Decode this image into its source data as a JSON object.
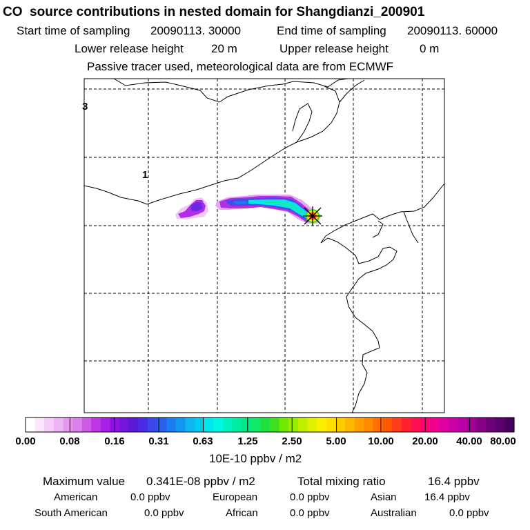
{
  "header": {
    "title": "CO  source contributions in nested domain for Shangdianzi_200901",
    "start_label": "Start time of sampling",
    "start_value": "20090113. 30000",
    "end_label": "End time of sampling",
    "end_value": "20090113. 60000",
    "lower_label": "Lower release height",
    "lower_value": "20 m",
    "upper_label": "Upper release height",
    "upper_value": "0 m",
    "note": "Passive tracer used, meteorological data are from ECMWF"
  },
  "map": {
    "contour_labels": [
      "3",
      "1"
    ]
  },
  "colorbar": {
    "tick_labels": [
      "0.00",
      "0.08",
      "0.16",
      "0.31",
      "0.63",
      "1.25",
      "2.50",
      "5.00",
      "10.00",
      "20.00",
      "40.00",
      "80.00"
    ],
    "units": "10E-10 ppbv / m2",
    "colors": [
      "#ffffff",
      "#fbe6fb",
      "#f5cdf7",
      "#eeb4f3",
      "#e69aef",
      "#de80eb",
      "#cf5ae8",
      "#c036e6",
      "#a820e6",
      "#8f12e0",
      "#7414dc",
      "#5a1ad8",
      "#4a2ae4",
      "#3c44ea",
      "#2a60ee",
      "#1a7ef0",
      "#1098f0",
      "#10b4f0",
      "#00ccf0",
      "#00e8ee",
      "#00f6e0",
      "#00f2c0",
      "#00eea4",
      "#00e888",
      "#10e868",
      "#20e040",
      "#40e020",
      "#70e800",
      "#98ee00",
      "#c0f000",
      "#e0f000",
      "#f8f000",
      "#ffe000",
      "#ffcc00",
      "#ffb800",
      "#ffa000",
      "#ff8a00",
      "#ff7000",
      "#ff5800",
      "#ff3c1c",
      "#ff2030",
      "#ff1050",
      "#ff0070",
      "#f0008c",
      "#e000a0",
      "#cc00a8",
      "#b800a8",
      "#a00098",
      "#880088",
      "#70007c",
      "#5c0070",
      "#480060"
    ]
  },
  "stats": {
    "max_label": "Maximum value",
    "max_value": "0.341E-08 ppbv / m2",
    "total_label": "Total mixing ratio",
    "total_value": "16.4 ppbv",
    "regions": [
      {
        "name": "American",
        "value": "0.0 ppbv"
      },
      {
        "name": "European",
        "value": "0.0 ppbv"
      },
      {
        "name": "Asian",
        "value": "16.4 ppbv"
      },
      {
        "name": "South American",
        "value": "0.0 ppbv"
      },
      {
        "name": "African",
        "value": "0.0 ppbv"
      },
      {
        "name": "Australian",
        "value": "0.0 ppbv"
      }
    ]
  }
}
